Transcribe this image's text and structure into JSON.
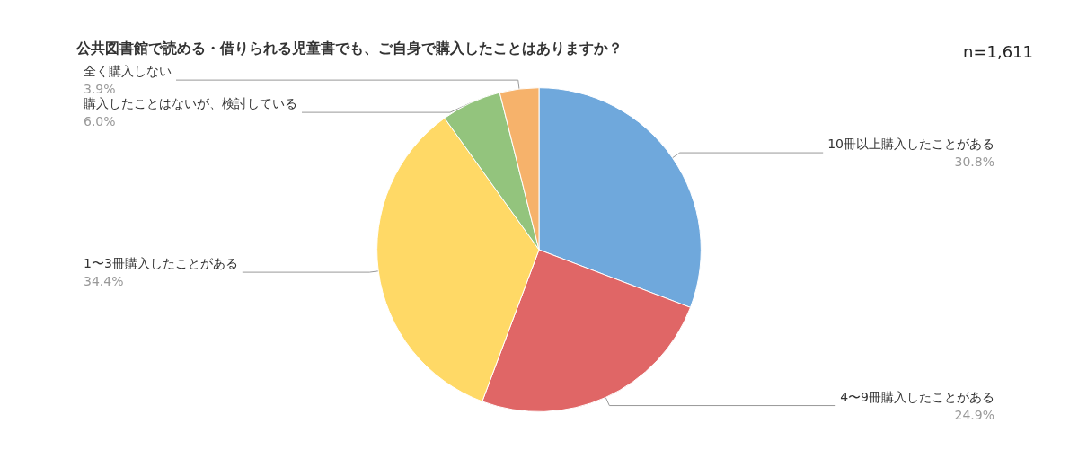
{
  "chart_data": {
    "type": "pie",
    "title": "公共図書館で読める・借りられる児童書でも、ご自身で購入したことはありますか？",
    "categories": [
      "10冊以上購入したことがある",
      "4〜9冊購入したことがある",
      "1〜3冊購入したことがある",
      "購入したことはないが、検討している",
      "全く購入しない"
    ],
    "values": [
      30.8,
      24.9,
      34.4,
      6.0,
      3.9
    ],
    "value_labels": [
      "30.8%",
      "24.9%",
      "34.4%",
      "6.0%",
      "3.9%"
    ],
    "colors": [
      "#6fa8dc",
      "#e06666",
      "#ffd966",
      "#93c47d",
      "#f6b26b"
    ],
    "annotations": [
      "n=1,611"
    ],
    "legend": false
  }
}
